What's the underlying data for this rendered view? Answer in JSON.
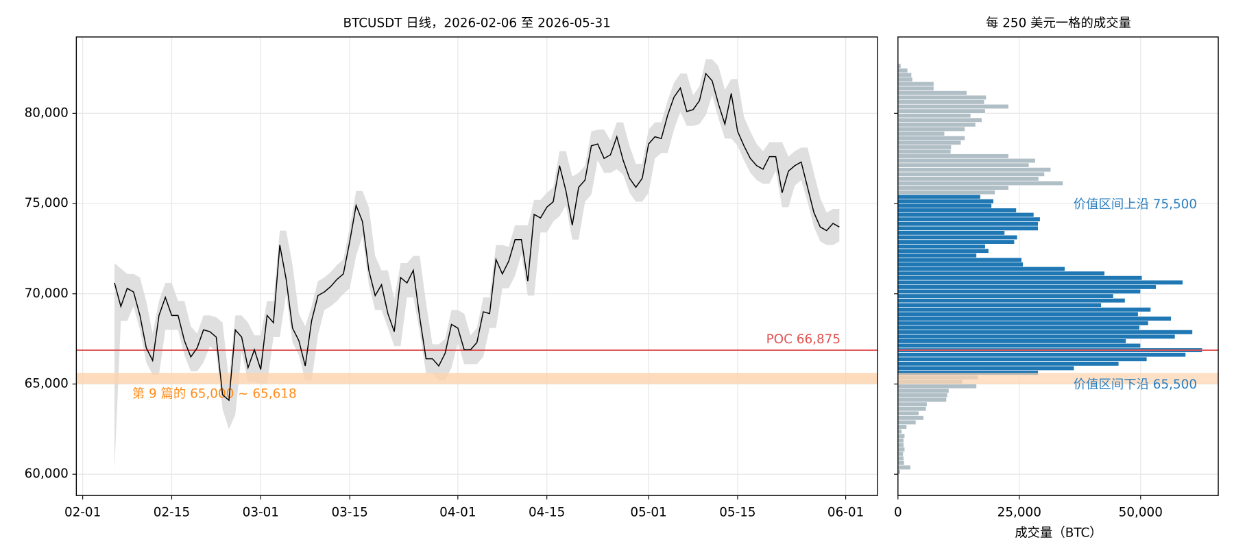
{
  "chart_data": [
    {
      "type": "line",
      "title": "BTCUSDT 日线，2026-02-06 至 2026-05-31",
      "x": [
        "02-06",
        "02-07",
        "02-08",
        "02-09",
        "02-10",
        "02-11",
        "02-12",
        "02-13",
        "02-14",
        "02-15",
        "02-16",
        "02-17",
        "02-18",
        "02-19",
        "02-20",
        "02-21",
        "02-22",
        "02-23",
        "02-24",
        "02-25",
        "02-26",
        "02-27",
        "02-28",
        "03-01",
        "03-02",
        "03-03",
        "03-04",
        "03-05",
        "03-06",
        "03-07",
        "03-08",
        "03-09",
        "03-10",
        "03-11",
        "03-12",
        "03-13",
        "03-14",
        "03-15",
        "03-16",
        "03-17",
        "03-18",
        "03-19",
        "03-20",
        "03-21",
        "03-22",
        "03-23",
        "03-24",
        "03-25",
        "03-26",
        "03-27",
        "03-28",
        "03-29",
        "03-30",
        "03-31",
        "04-01",
        "04-02",
        "04-03",
        "04-04",
        "04-05",
        "04-06",
        "04-07",
        "04-08",
        "04-09",
        "04-10",
        "04-11",
        "04-12",
        "04-13",
        "04-14",
        "04-15",
        "04-16",
        "04-17",
        "04-18",
        "04-19",
        "04-20",
        "04-21",
        "04-22",
        "04-23",
        "04-24",
        "04-25",
        "04-26",
        "04-27",
        "04-28",
        "04-29",
        "04-30",
        "05-01",
        "05-02",
        "05-03",
        "05-04",
        "05-05",
        "05-06",
        "05-07",
        "05-08",
        "05-09",
        "05-10",
        "05-11",
        "05-12",
        "05-13",
        "05-14",
        "05-15",
        "05-16",
        "05-17",
        "05-18",
        "05-19",
        "05-20",
        "05-21",
        "05-22",
        "05-23",
        "05-24",
        "05-25",
        "05-26",
        "05-27",
        "05-28",
        "05-29",
        "05-30",
        "05-31"
      ],
      "values": [
        70600,
        69300,
        70300,
        70100,
        68800,
        67000,
        66300,
        68800,
        69800,
        68800,
        68800,
        67400,
        66500,
        67000,
        68000,
        67900,
        67600,
        64400,
        64100,
        68000,
        67600,
        65900,
        66900,
        65800,
        68800,
        68400,
        72700,
        70800,
        68100,
        67400,
        66000,
        68500,
        69900,
        70100,
        70400,
        70800,
        71100,
        72900,
        74900,
        74000,
        71300,
        69900,
        70500,
        68900,
        67900,
        70900,
        70600,
        71300,
        68700,
        66400,
        66400,
        66000,
        66700,
        68300,
        68100,
        66900,
        66900,
        67300,
        69000,
        68900,
        71900,
        71100,
        71800,
        73000,
        73000,
        70700,
        74400,
        74200,
        74800,
        75100,
        77100,
        75700,
        73800,
        75900,
        76300,
        78200,
        78300,
        77500,
        77700,
        78700,
        77400,
        76400,
        75900,
        76400,
        78300,
        78700,
        78600,
        79900,
        80900,
        81400,
        80100,
        80200,
        80700,
        82200,
        81800,
        80500,
        79400,
        81100,
        79000,
        78200,
        77500,
        77100,
        76900,
        77600,
        77600,
        75600,
        76800,
        77100,
        77300,
        75900,
        74500,
        73700,
        73500,
        73900,
        73700
      ],
      "high": [
        71700,
        71400,
        71100,
        71100,
        70900,
        69600,
        67800,
        69600,
        70600,
        70600,
        69600,
        69600,
        68200,
        67800,
        68800,
        68800,
        68700,
        68400,
        65200,
        68800,
        68800,
        68400,
        67700,
        67700,
        69600,
        69600,
        73500,
        73500,
        71600,
        68900,
        68200,
        69300,
        70700,
        70900,
        71200,
        71600,
        71900,
        73700,
        75700,
        75700,
        74800,
        72100,
        71300,
        71300,
        69700,
        71700,
        71700,
        72100,
        72100,
        69500,
        67200,
        67200,
        67500,
        69100,
        69100,
        68900,
        67700,
        68100,
        69800,
        69800,
        72700,
        72700,
        72600,
        73800,
        73800,
        73800,
        75200,
        75200,
        75600,
        75900,
        77900,
        77900,
        76500,
        76700,
        77100,
        79000,
        79100,
        79100,
        78500,
        79500,
        79500,
        78200,
        77200,
        77200,
        79100,
        79500,
        79500,
        80700,
        81700,
        82200,
        82200,
        81000,
        81500,
        83000,
        83000,
        82600,
        81300,
        81900,
        81900,
        79800,
        79000,
        78300,
        77900,
        78400,
        78400,
        78400,
        77600,
        77900,
        78100,
        78100,
        76700,
        75300,
        74500,
        74700,
        74700
      ],
      "low": [
        60300,
        68500,
        68500,
        69300,
        68000,
        66200,
        65500,
        65500,
        68000,
        68000,
        68000,
        66600,
        65700,
        65700,
        66200,
        67100,
        66800,
        63600,
        62500,
        63300,
        66800,
        65100,
        65100,
        65000,
        65000,
        67600,
        67600,
        70000,
        67300,
        66600,
        65200,
        65200,
        67700,
        69100,
        69300,
        69600,
        70000,
        70300,
        72100,
        73200,
        70500,
        69100,
        69100,
        68100,
        67100,
        67100,
        69800,
        69800,
        67900,
        65600,
        65600,
        65200,
        65200,
        65900,
        67300,
        66100,
        66100,
        66100,
        66500,
        68100,
        68100,
        70300,
        70300,
        71000,
        72200,
        69900,
        69900,
        73400,
        73400,
        74000,
        74300,
        74900,
        73000,
        73000,
        75100,
        75500,
        77400,
        76700,
        76700,
        76900,
        76600,
        75600,
        75100,
        75100,
        75600,
        77500,
        77800,
        77800,
        79100,
        80100,
        79300,
        79300,
        79400,
        79900,
        81000,
        79700,
        78600,
        78600,
        78200,
        77400,
        76700,
        76300,
        76100,
        76100,
        76800,
        74800,
        74800,
        76000,
        76300,
        75100,
        73700,
        72900,
        72700,
        72700,
        72900
      ],
      "color": "#000000",
      "band_color": "#d9d9d9",
      "xlim": [
        "01-31",
        "06-06"
      ],
      "xticks": [
        "02-01",
        "02-15",
        "03-01",
        "03-15",
        "04-01",
        "04-15",
        "05-01",
        "05-15",
        "06-01"
      ],
      "ylim": [
        58820,
        84230
      ],
      "yticks": [
        {
          "value": 60000,
          "label": "60,000"
        },
        {
          "value": 65000,
          "label": "65,000"
        },
        {
          "value": 70000,
          "label": "70,000"
        },
        {
          "value": 75000,
          "label": "75,000"
        },
        {
          "value": 80000,
          "label": "80,000"
        }
      ],
      "grid": true,
      "poc": {
        "value": 66875,
        "label": "POC 66,875",
        "color": "#e05252"
      },
      "zone": {
        "from": 65000,
        "to": 65618,
        "label": "第 9 篇的 65,000 ~ 65,618",
        "color": "#ff8c1a",
        "fill": "#fdd3ae"
      }
    },
    {
      "type": "histogram",
      "orientation": "horizontal",
      "title": "每 250 美元一格的成交量",
      "xlabel": "成交量（BTC）",
      "bins": [
        60000,
        60250,
        60500,
        60750,
        61000,
        61250,
        61500,
        61750,
        62000,
        62250,
        62500,
        62750,
        63000,
        63250,
        63500,
        63750,
        64000,
        64250,
        64500,
        64750,
        65000,
        65250,
        65500,
        65750,
        66000,
        66250,
        66500,
        66750,
        67000,
        67250,
        67500,
        67750,
        68000,
        68250,
        68500,
        68750,
        69000,
        69250,
        69500,
        69750,
        70000,
        70250,
        70500,
        70750,
        71000,
        71250,
        71500,
        71750,
        72000,
        72250,
        72500,
        72750,
        73000,
        73250,
        73500,
        73750,
        74000,
        74250,
        74500,
        74750,
        75000,
        75250,
        75500,
        75750,
        76000,
        76250,
        76500,
        76750,
        77000,
        77250,
        77500,
        77750,
        78000,
        78250,
        78500,
        78750,
        79000,
        79250,
        79500,
        79750,
        80000,
        80250,
        80500,
        80750,
        81000,
        81250,
        81500,
        81750,
        82000,
        82250,
        82500,
        82750
      ],
      "values": [
        500,
        2600,
        1300,
        1200,
        1100,
        1400,
        1200,
        1200,
        1400,
        800,
        1800,
        3700,
        5300,
        4300,
        5800,
        6000,
        10000,
        10200,
        10500,
        16200,
        13300,
        16500,
        28900,
        36300,
        45500,
        51300,
        59300,
        62700,
        50000,
        47000,
        57100,
        60700,
        49800,
        51600,
        56300,
        49500,
        52100,
        41900,
        46800,
        44400,
        50000,
        53200,
        58700,
        50300,
        42600,
        34400,
        25800,
        25500,
        16200,
        18700,
        18000,
        24000,
        24600,
        22000,
        28900,
        28900,
        29300,
        28000,
        24400,
        19300,
        19700,
        17000,
        20000,
        22800,
        34000,
        29000,
        30200,
        31500,
        27000,
        28300,
        22800,
        10900,
        11000,
        13000,
        13800,
        9600,
        13800,
        16000,
        17300,
        15000,
        18000,
        22800,
        17800,
        18200,
        14200,
        7400,
        7400,
        3000,
        2800,
        2000,
        600
      ],
      "color": "#1f77b4",
      "outside_color": "#b0bec5",
      "xlim": [
        0,
        66000
      ],
      "xticks": [
        0,
        {
          "value": 25000,
          "label": "25,000"
        },
        {
          "value": 50000,
          "label": "50,000"
        }
      ],
      "grid": true,
      "value_area_high": {
        "value": 75500,
        "label": "价值区间上沿 75,500"
      },
      "value_area_low": {
        "value": 65500,
        "label": "价值区间下沿 65,500"
      },
      "label_color": "#2a7fc0"
    }
  ]
}
